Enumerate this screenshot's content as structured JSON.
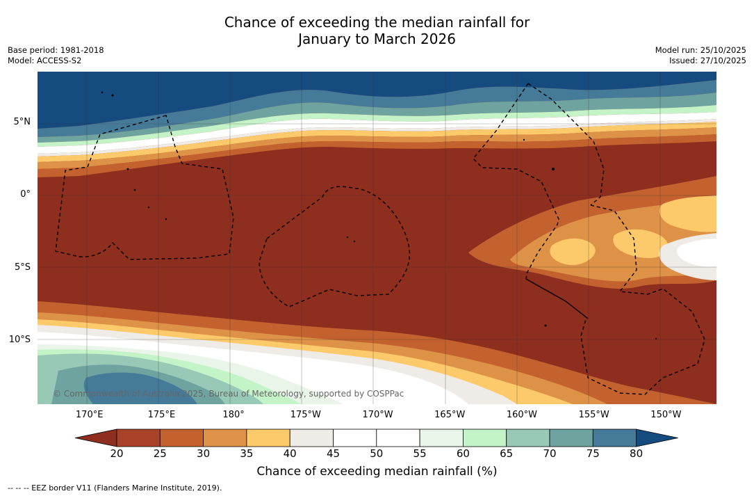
{
  "title": {
    "line1": "Chance of exceeding the median rainfall for",
    "line2": "January to March 2026"
  },
  "meta": {
    "base_period": "Base period: 1981-2018",
    "model": "Model: ACCESS-S2",
    "model_run": "Model run: 25/10/2025",
    "issued": "Issued: 27/10/2025"
  },
  "map": {
    "lat_labels": [
      "5°N",
      "0°",
      "5°S",
      "10°S"
    ],
    "lat_values": [
      5,
      0,
      -5,
      -10
    ],
    "lon_labels": [
      "170°E",
      "175°E",
      "180°",
      "175°W",
      "170°W",
      "165°W",
      "160°W",
      "155°W",
      "150°W"
    ],
    "lon_values": [
      170,
      175,
      180,
      185,
      190,
      195,
      200,
      205,
      210
    ],
    "lat_range": [
      -14.4,
      8.5
    ],
    "lon_range": [
      166.4,
      213.5
    ],
    "copyright": "© Commonwealth of Australia 2025, Bureau of Meteorology, supported by COSPPac"
  },
  "colorbar": {
    "ticks": [
      "20",
      "25",
      "30",
      "35",
      "40",
      "45",
      "50",
      "55",
      "60",
      "65",
      "70",
      "75",
      "80"
    ],
    "colors": [
      "#8e2e1e",
      "#a8432a",
      "#c3622f",
      "#de9247",
      "#fdca6b",
      "#efebe7",
      "#ffffff",
      "#ffffff",
      "#e9f5e8",
      "#c4f3c8",
      "#98c9b6",
      "#6ea3a0",
      "#467a99",
      "#164b80"
    ],
    "label": "Chance of exceeding median rainfall (%)"
  },
  "footnote": "--  --  -- EEZ border V11 (Flanders Marine Institute, 2019)."
}
